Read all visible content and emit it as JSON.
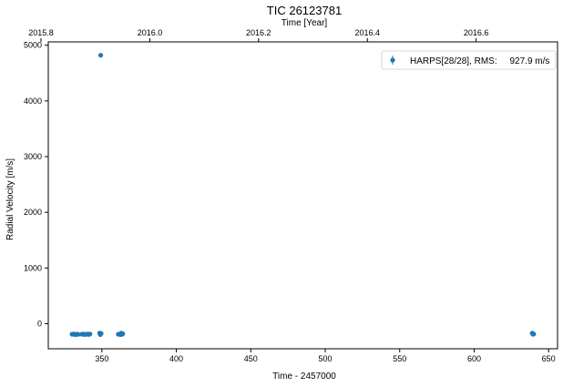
{
  "chart_data": {
    "type": "scatter",
    "title": "TIC 26123781",
    "xlabel": "Time - 2457000",
    "ylabel": "Radial Velocity [m/s]",
    "top_xlabel": "Time [Year]",
    "xlim": [
      314,
      656
    ],
    "ylim": [
      -450,
      5060
    ],
    "xticks": [
      350,
      400,
      450,
      500,
      550,
      600,
      650
    ],
    "yticks": [
      0,
      1000,
      2000,
      3000,
      4000,
      5000
    ],
    "top_xticks": [
      {
        "label": "2015.8",
        "x": 309.1
      },
      {
        "label": "2016.0",
        "x": 382.2
      },
      {
        "label": "2016.2",
        "x": 455.2
      },
      {
        "label": "2016.4",
        "x": 528.3
      },
      {
        "label": "2016.6",
        "x": 601.3
      }
    ],
    "grid": false,
    "legend_position": "top-right",
    "color": "#1f77b4",
    "series": [
      {
        "name": "HARPS[28/28], RMS:     927.9 m/s",
        "x": [
          330.0,
          331.0,
          332.0,
          333.0,
          333.5,
          334.0,
          336.5,
          337.5,
          338.5,
          339.5,
          340.5,
          341.0,
          341.5,
          342.0,
          348.5,
          349.0,
          349.0,
          349.5,
          349.2,
          361.0,
          362.0,
          362.5,
          363.0,
          363.5,
          364.0,
          639.0,
          639.5,
          640.0
        ],
        "y": [
          -190,
          -185,
          -195,
          -190,
          -188,
          -192,
          -190,
          -185,
          -195,
          -190,
          -188,
          -192,
          -190,
          -185,
          -170,
          -195,
          -180,
          -175,
          4820,
          -190,
          -185,
          -195,
          -170,
          -190,
          -180,
          -170,
          -190,
          -185
        ]
      }
    ]
  }
}
